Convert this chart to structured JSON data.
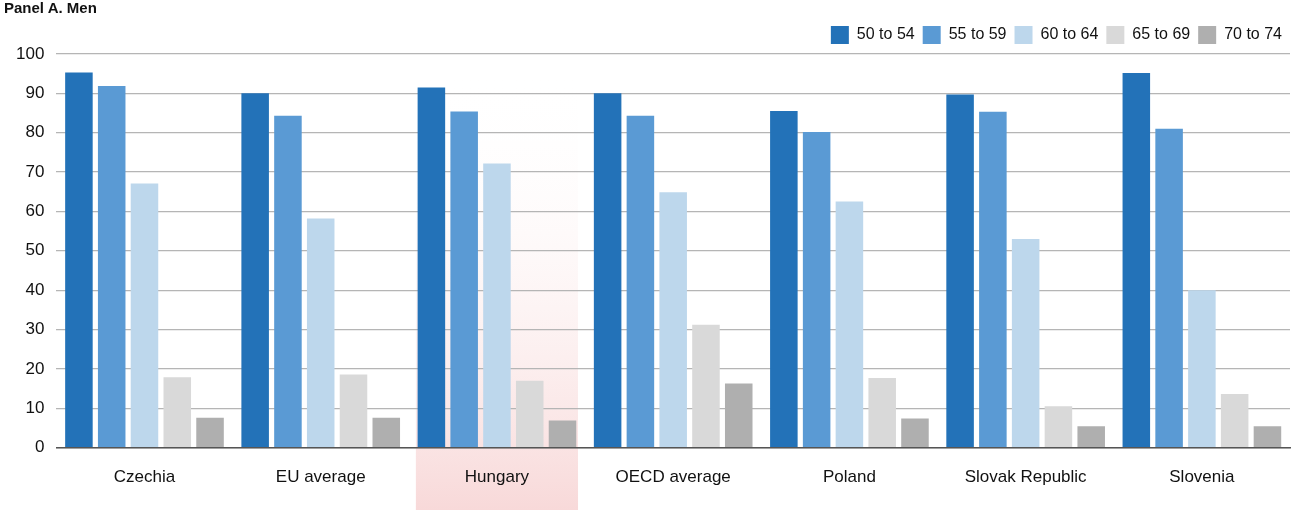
{
  "chart_data": {
    "type": "bar",
    "title": "Panel A. Men",
    "categories": [
      "Czechia",
      "EU average",
      "Hungary",
      "OECD average",
      "Poland",
      "Slovak Republic",
      "Slovenia"
    ],
    "series": [
      {
        "name": "50 to 54",
        "color": "#2372b8",
        "values": [
          95.3,
          90.0,
          91.5,
          90.0,
          85.5,
          89.7,
          95.2
        ]
      },
      {
        "name": "55 to 59",
        "color": "#5a9ad4",
        "values": [
          91.9,
          84.3,
          85.4,
          84.3,
          80.2,
          85.3,
          81.0
        ]
      },
      {
        "name": "60 to 64",
        "color": "#bdd7ec",
        "values": [
          67.1,
          58.2,
          72.2,
          64.9,
          62.5,
          53.0,
          40.0
        ]
      },
      {
        "name": "65 to 69",
        "color": "#d9d9d9",
        "values": [
          17.9,
          18.6,
          17.0,
          31.2,
          17.7,
          10.5,
          13.6
        ]
      },
      {
        "name": "70 to 74",
        "color": "#afafaf",
        "values": [
          7.6,
          7.6,
          6.9,
          16.3,
          7.4,
          5.4,
          5.4
        ]
      }
    ],
    "ylim": [
      0,
      100
    ],
    "yticks": [
      0,
      10,
      20,
      30,
      40,
      50,
      60,
      70,
      80,
      90,
      100
    ],
    "grid": "y",
    "legend": "top right",
    "bands": [
      {
        "axis": "x",
        "from": "Hungary",
        "to": "Hungary",
        "color": "#f8d9d9"
      }
    ]
  }
}
